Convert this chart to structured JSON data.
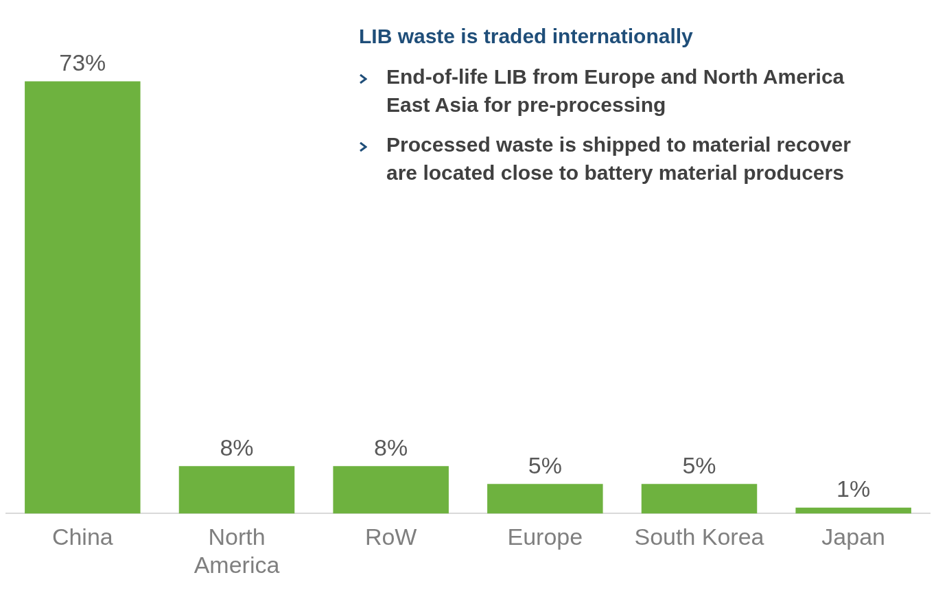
{
  "chart_data": {
    "type": "bar",
    "categories": [
      "China",
      "North America",
      "RoW",
      "Europe",
      "South Korea",
      "Japan"
    ],
    "values": [
      73,
      8,
      8,
      5,
      5,
      1
    ],
    "value_labels": [
      "73%",
      "8%",
      "8%",
      "5%",
      "5%",
      "1%"
    ],
    "color": "#6eb23f",
    "annotations": [
      "LIB waste is traded internationally",
      "End-of-life LIB from Europe and North America",
      "East Asia for pre-processing",
      "Processed waste is shipped to material recover",
      "are located close to battery material producers"
    ],
    "legend": false,
    "grid": false
  }
}
